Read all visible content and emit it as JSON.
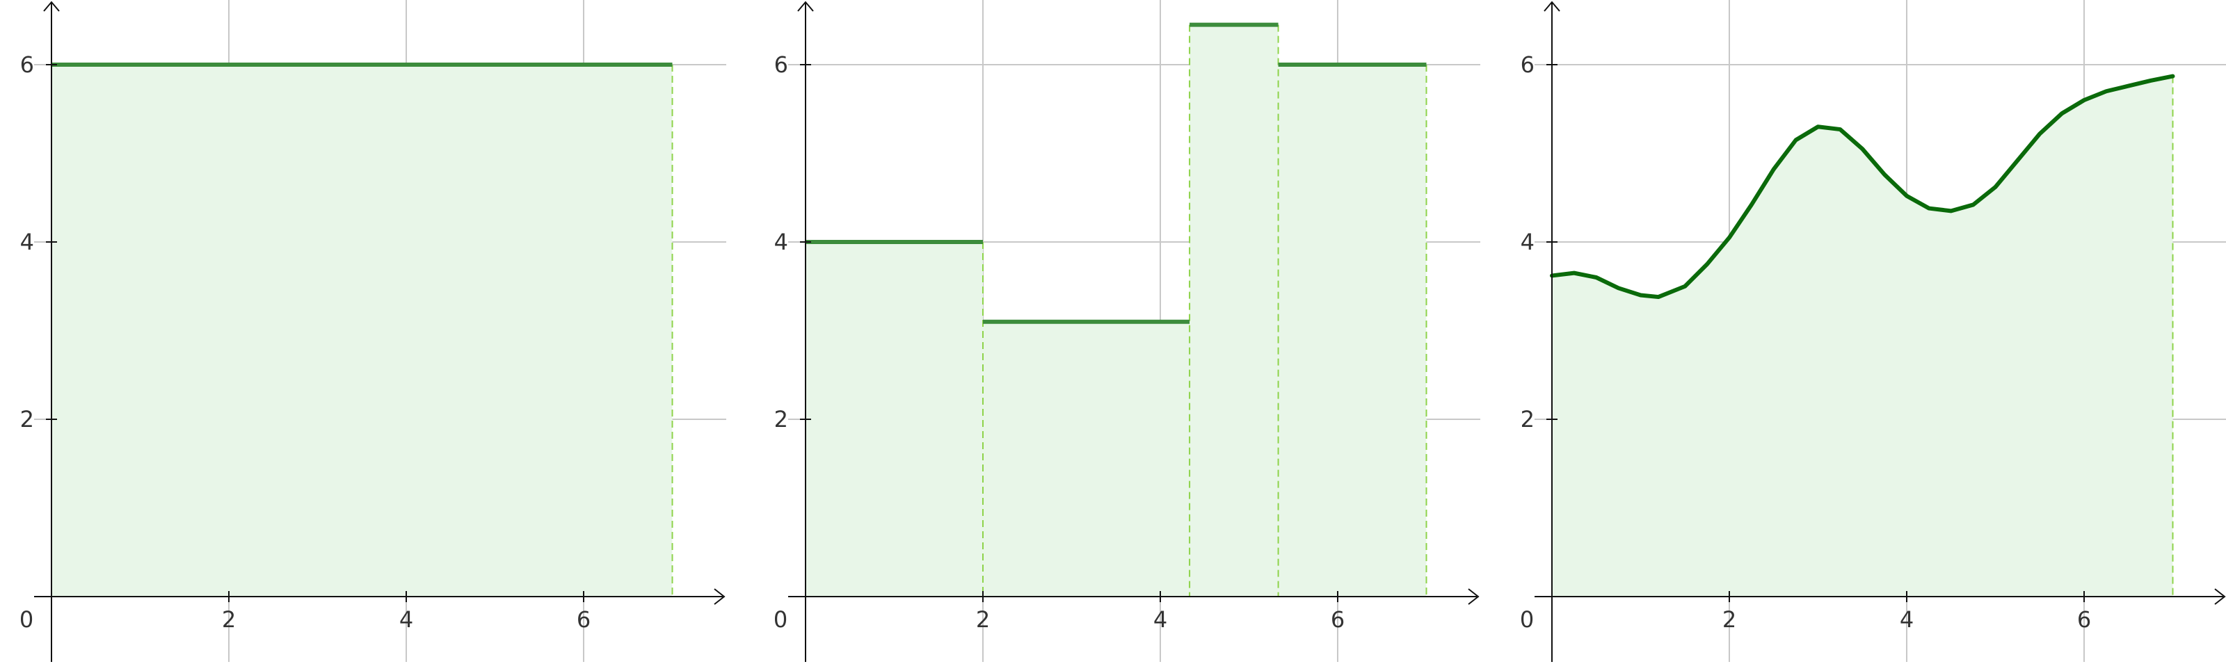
{
  "palette": {
    "grid": "#c8c8c8",
    "axis": "#111111",
    "fill": "#e8f6e8",
    "curve": "#0a6a0a",
    "step": "#3c8c3c",
    "guide": "#8ed34a",
    "tick_text": "#333333"
  },
  "chart_data": [
    {
      "type": "area",
      "subtype": "constant",
      "xlim": [
        0,
        7.6
      ],
      "ylim": [
        -0.7,
        6.7
      ],
      "x_ticks": [
        2,
        4,
        6
      ],
      "y_ticks": [
        2,
        4,
        6
      ],
      "origin_label": "0",
      "grid": true,
      "segments": [
        {
          "x0": 0,
          "x1": 7,
          "y": 6
        }
      ]
    },
    {
      "type": "area",
      "subtype": "step",
      "xlim": [
        0,
        7.6
      ],
      "ylim": [
        -0.7,
        6.7
      ],
      "x_ticks": [
        2,
        4,
        6
      ],
      "y_ticks": [
        2,
        4,
        6
      ],
      "origin_label": "0",
      "grid": true,
      "segments": [
        {
          "x0": 0,
          "x1": 2,
          "y": 4
        },
        {
          "x0": 2,
          "x1": 4.33,
          "y": 3.1
        },
        {
          "x0": 4.33,
          "x1": 5.33,
          "y": 6.45
        },
        {
          "x0": 5.33,
          "x1": 7,
          "y": 6
        }
      ]
    },
    {
      "type": "area",
      "subtype": "curve",
      "xlim": [
        0,
        7.6
      ],
      "ylim": [
        -0.7,
        6.7
      ],
      "x_ticks": [
        2,
        4,
        6
      ],
      "y_ticks": [
        2,
        4,
        6
      ],
      "origin_label": "0",
      "grid": true,
      "x": [
        0,
        0.25,
        0.5,
        0.75,
        1.0,
        1.2,
        1.5,
        1.75,
        2.0,
        2.25,
        2.5,
        2.75,
        3.0,
        3.25,
        3.5,
        3.75,
        4.0,
        4.25,
        4.5,
        4.75,
        5.0,
        5.25,
        5.5,
        5.75,
        6.0,
        6.25,
        6.5,
        6.75,
        7.0
      ],
      "y": [
        3.62,
        3.65,
        3.6,
        3.48,
        3.4,
        3.38,
        3.5,
        3.75,
        4.05,
        4.42,
        4.82,
        5.15,
        5.3,
        5.27,
        5.05,
        4.76,
        4.52,
        4.38,
        4.35,
        4.42,
        4.62,
        4.92,
        5.22,
        5.45,
        5.6,
        5.7,
        5.76,
        5.82,
        5.87
      ]
    }
  ]
}
